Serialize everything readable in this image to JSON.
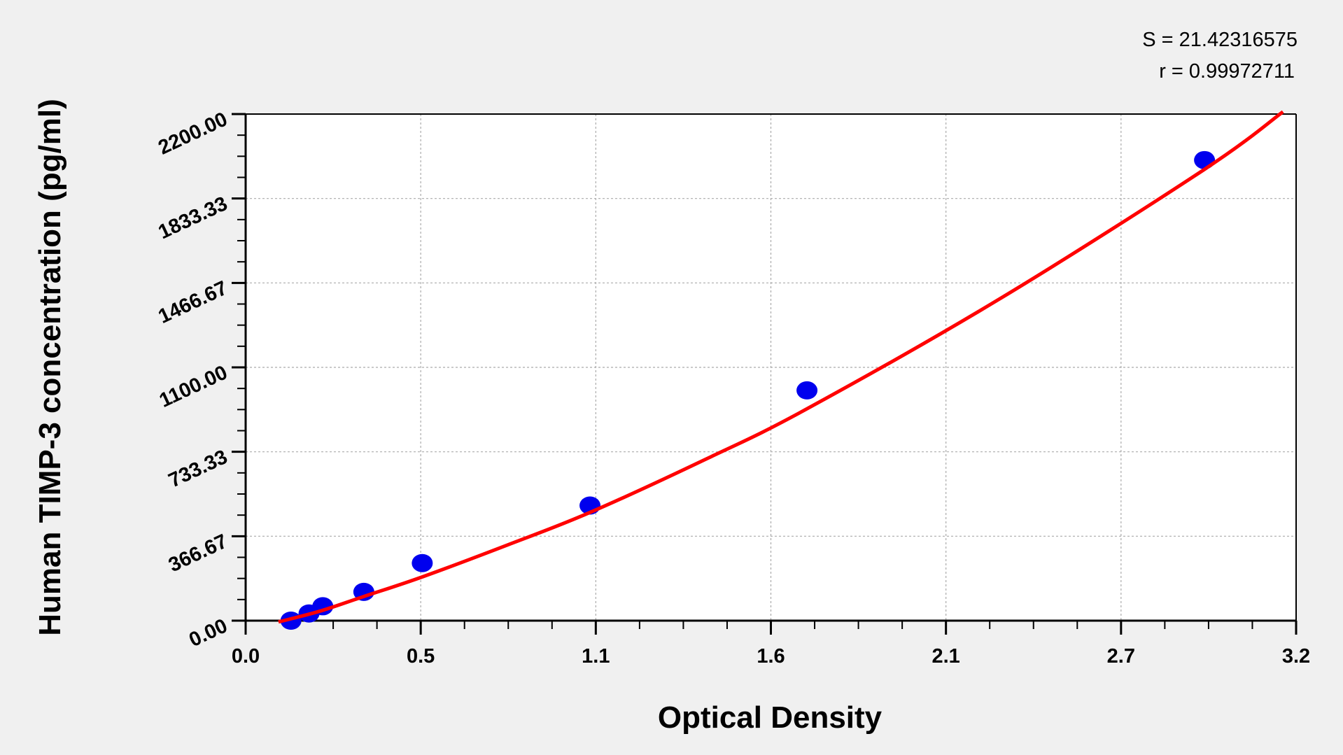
{
  "chart_data": {
    "type": "scatter",
    "title": "",
    "xlabel": "Optical Density",
    "ylabel": "Human TIMP-3 concentration (pg/ml)",
    "xlim": [
      0,
      3.2
    ],
    "ylim": [
      0,
      2200
    ],
    "x_ticks": [
      "0.0",
      "0.5",
      "1.1",
      "1.6",
      "2.1",
      "2.7",
      "3.2"
    ],
    "y_ticks": [
      "0.00",
      "366.67",
      "733.33",
      "1100.00",
      "1466.67",
      "1833.33",
      "2200.00"
    ],
    "grid": true,
    "annotations": [
      "S = 21.42316575",
      "r = 0.99972711"
    ],
    "colors": {
      "points": "#0000ee",
      "curve": "#ff0000"
    },
    "series": [
      {
        "type": "scatter",
        "x": [
          0.138,
          0.193,
          0.235,
          0.36,
          0.538,
          1.049,
          1.71,
          2.921
        ],
        "y": [
          0,
          31.25,
          62.5,
          125,
          250,
          500,
          1000,
          2000
        ]
      },
      {
        "type": "line",
        "x": [
          0.1,
          0.138,
          0.235,
          0.36,
          0.538,
          0.8,
          1.049,
          1.4,
          1.71,
          2.3,
          2.921,
          3.16
        ],
        "y": [
          -5,
          8,
          45,
          105,
          190,
          330,
          470,
          700,
          920,
          1400,
          1960,
          2210
        ]
      }
    ]
  }
}
